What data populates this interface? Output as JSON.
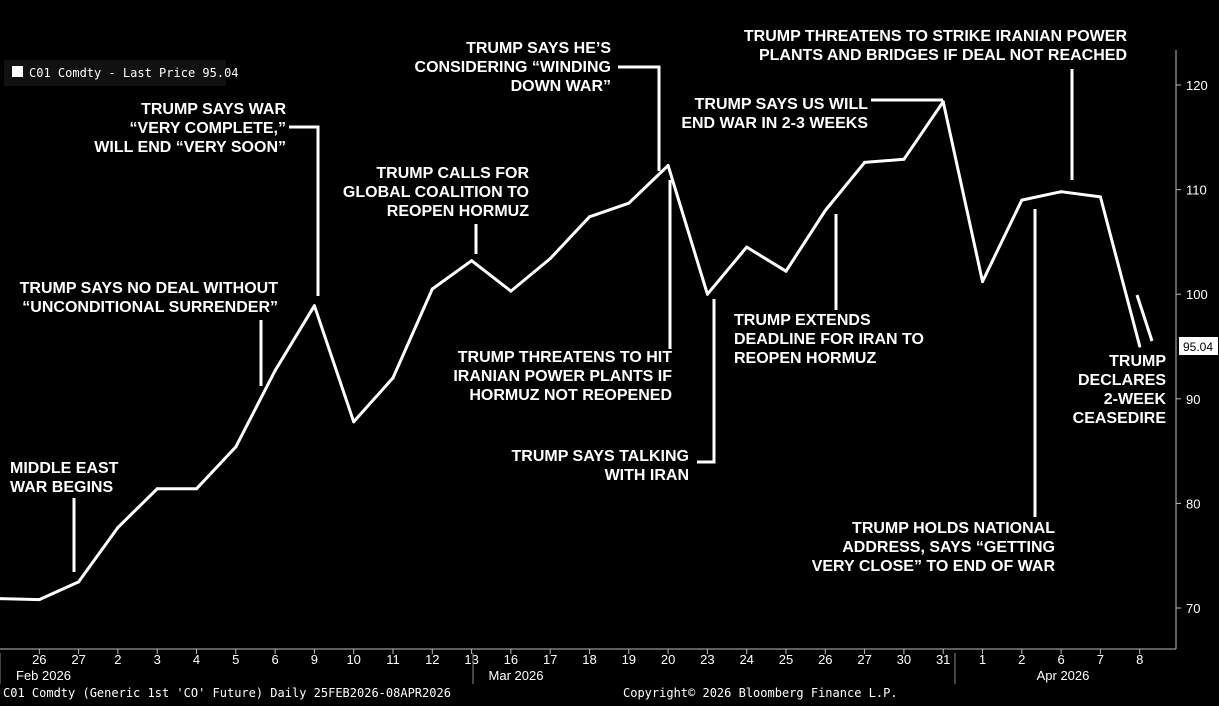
{
  "chart_data": {
    "type": "line",
    "title": "",
    "xlabel": "",
    "ylabel": "",
    "ylim": [
      63,
      123
    ],
    "y_ticks": [
      70,
      80,
      90,
      100,
      110,
      120
    ],
    "grid": false,
    "legend_position": "top-left",
    "series": [
      {
        "name": "C01 Comdty - Last Price 95.04",
        "color": "#ffffff",
        "x": [
          "Feb 25 2026",
          "Feb 26 2026",
          "Feb 27 2026",
          "Mar 2 2026",
          "Mar 3 2026",
          "Mar 4 2026",
          "Mar 5 2026",
          "Mar 6 2026",
          "Mar 9 2026",
          "Mar 10 2026",
          "Mar 11 2026",
          "Mar 12 2026",
          "Mar 13 2026",
          "Mar 16 2026",
          "Mar 17 2026",
          "Mar 18 2026",
          "Mar 19 2026",
          "Mar 20 2026",
          "Mar 23 2026",
          "Mar 24 2026",
          "Mar 25 2026",
          "Mar 26 2026",
          "Mar 27 2026",
          "Mar 30 2026",
          "Mar 31 2026",
          "Apr 1 2026",
          "Apr 2 2026",
          "Apr 6 2026",
          "Apr 7 2026",
          "Apr 8 2026"
        ],
        "values": [
          70.9,
          70.8,
          72.5,
          77.7,
          81.4,
          81.4,
          85.4,
          92.7,
          98.9,
          87.8,
          92.0,
          100.5,
          103.2,
          100.3,
          103.4,
          107.4,
          108.7,
          112.3,
          100.0,
          104.5,
          102.2,
          108.0,
          112.6,
          112.9,
          118.4,
          101.2,
          109.0,
          109.8,
          109.3,
          95.04
        ]
      }
    ],
    "x_tick_labels": [
      "26",
      "27",
      "2",
      "3",
      "4",
      "5",
      "6",
      "9",
      "10",
      "11",
      "12",
      "13",
      "16",
      "17",
      "18",
      "19",
      "20",
      "23",
      "24",
      "25",
      "26",
      "27",
      "30",
      "31",
      "1",
      "2",
      "6",
      "7",
      "8"
    ],
    "month_labels": [
      "Feb 2026",
      "Mar 2026",
      "Apr 2026"
    ],
    "last_price_label": "95.04",
    "legend_text": "C01 Comdty - Last Price 95.04",
    "annotations": [
      {
        "lines": [
          "MIDDLE EAST",
          "WAR BEGINS"
        ]
      },
      {
        "lines": [
          "TRUMP SAYS NO DEAL WITHOUT",
          "“UNCONDITIONAL SURRENDER”"
        ]
      },
      {
        "lines": [
          "TRUMP SAYS WAR",
          "“VERY COMPLETE,”",
          "WILL END “VERY SOON”"
        ]
      },
      {
        "lines": [
          "TRUMP CALLS FOR",
          "GLOBAL COALITION TO",
          "REOPEN HORMUZ"
        ]
      },
      {
        "lines": [
          "TRUMP SAYS HE’S",
          "CONSIDERING “WINDING",
          "DOWN WAR”"
        ]
      },
      {
        "lines": [
          "TRUMP THREATENS TO HIT",
          "IRANIAN POWER PLANTS IF",
          "HORMUZ NOT REOPENED"
        ]
      },
      {
        "lines": [
          "TRUMP SAYS TALKING",
          "WITH IRAN"
        ]
      },
      {
        "lines": [
          "TRUMP EXTENDS",
          "DEADLINE FOR IRAN TO",
          "REOPEN HORMUZ"
        ]
      },
      {
        "lines": [
          "TRUMP SAYS US WILL",
          "END WAR IN 2-3 WEEKS"
        ]
      },
      {
        "lines": [
          "TRUMP THREATENS TO STRIKE IRANIAN POWER",
          "PLANTS AND BRIDGES IF DEAL NOT REACHED"
        ]
      },
      {
        "lines": [
          "TRUMP HOLDS NATIONAL",
          "ADDRESS, SAYS “GETTING",
          "VERY CLOSE” TO END OF WAR"
        ]
      },
      {
        "lines": [
          "TRUMP",
          "DECLARES",
          "2-WEEK",
          "CEASEDIRE"
        ]
      }
    ]
  },
  "footer": {
    "left": "C01 Comdty (Generic 1st 'CO' Future) Daily 25FEB2026-08APR2026",
    "right": "Copyright© 2026 Bloomberg Finance L.P."
  }
}
